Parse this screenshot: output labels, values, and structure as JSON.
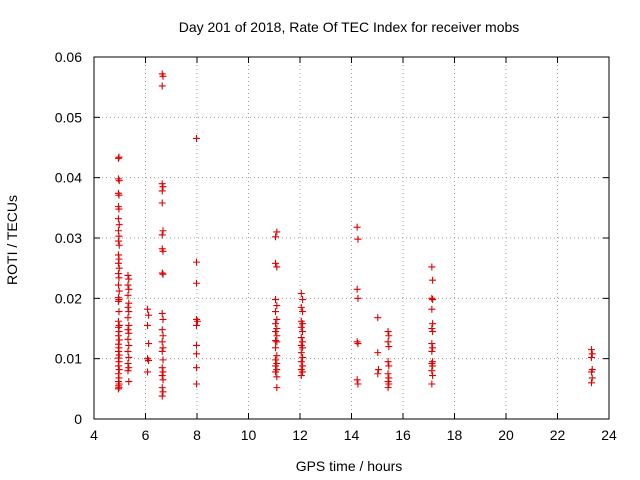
{
  "chart_data": {
    "type": "scatter",
    "title": "Day 201 of 2018, Rate Of TEC Index for receiver mobs",
    "xlabel": "GPS time / hours",
    "ylabel": "ROTI / TECUs",
    "xlim": [
      4,
      24
    ],
    "ylim": [
      0,
      0.06
    ],
    "x_ticks": [
      4,
      6,
      8,
      10,
      12,
      14,
      16,
      18,
      20,
      22,
      24
    ],
    "x_tick_labels": [
      "4",
      "6",
      "8",
      "10",
      "12",
      "14",
      "16",
      "18",
      "20",
      "22",
      "24"
    ],
    "y_ticks": [
      0,
      0.01,
      0.02,
      0.03,
      0.04,
      0.05,
      0.06
    ],
    "y_tick_labels": [
      "0",
      "0.01",
      "0.02",
      "0.03",
      "0.04",
      "0.05",
      "0.06"
    ],
    "grid": true,
    "marker": "plus",
    "series": [
      {
        "name": "ROTI",
        "color": "#e00000",
        "points": [
          [
            4.95,
            0.0432
          ],
          [
            4.97,
            0.0434
          ],
          [
            4.95,
            0.0398
          ],
          [
            4.98,
            0.0395
          ],
          [
            4.95,
            0.0374
          ],
          [
            4.97,
            0.0371
          ],
          [
            4.95,
            0.0352
          ],
          [
            4.97,
            0.0348
          ],
          [
            4.95,
            0.0332
          ],
          [
            4.98,
            0.0322
          ],
          [
            4.95,
            0.0312
          ],
          [
            4.97,
            0.0303
          ],
          [
            4.95,
            0.0295
          ],
          [
            4.98,
            0.0288
          ],
          [
            4.95,
            0.0272
          ],
          [
            4.97,
            0.0265
          ],
          [
            4.95,
            0.0258
          ],
          [
            4.98,
            0.025
          ],
          [
            4.95,
            0.0241
          ],
          [
            4.97,
            0.0234
          ],
          [
            4.95,
            0.0222
          ],
          [
            4.98,
            0.0212
          ],
          [
            4.95,
            0.0201
          ],
          [
            4.97,
            0.0198
          ],
          [
            4.95,
            0.0195
          ],
          [
            4.97,
            0.0178
          ],
          [
            4.95,
            0.0162
          ],
          [
            4.98,
            0.0155
          ],
          [
            4.95,
            0.0152
          ],
          [
            4.97,
            0.0145
          ],
          [
            4.95,
            0.0138
          ],
          [
            4.98,
            0.0131
          ],
          [
            4.95,
            0.0124
          ],
          [
            4.97,
            0.0118
          ],
          [
            4.95,
            0.0112
          ],
          [
            4.98,
            0.0106
          ],
          [
            4.95,
            0.0101
          ],
          [
            4.97,
            0.0095
          ],
          [
            4.95,
            0.0088
          ],
          [
            4.98,
            0.0082
          ],
          [
            4.95,
            0.0075
          ],
          [
            4.97,
            0.0068
          ],
          [
            4.95,
            0.0062
          ],
          [
            4.98,
            0.0058
          ],
          [
            4.95,
            0.0055
          ],
          [
            4.97,
            0.0052
          ],
          [
            4.95,
            0.005
          ],
          [
            5.32,
            0.0238
          ],
          [
            5.35,
            0.0232
          ],
          [
            5.32,
            0.0222
          ],
          [
            5.35,
            0.0215
          ],
          [
            5.32,
            0.0205
          ],
          [
            5.35,
            0.0192
          ],
          [
            5.32,
            0.0185
          ],
          [
            5.35,
            0.0178
          ],
          [
            5.32,
            0.0168
          ],
          [
            5.35,
            0.0155
          ],
          [
            5.32,
            0.0148
          ],
          [
            5.35,
            0.0142
          ],
          [
            5.32,
            0.0132
          ],
          [
            5.35,
            0.0122
          ],
          [
            5.32,
            0.0112
          ],
          [
            5.35,
            0.0102
          ],
          [
            5.32,
            0.0092
          ],
          [
            5.35,
            0.0085
          ],
          [
            5.32,
            0.008
          ],
          [
            5.35,
            0.0062
          ],
          [
            6.08,
            0.0182
          ],
          [
            6.12,
            0.0172
          ],
          [
            6.08,
            0.0155
          ],
          [
            6.12,
            0.0125
          ],
          [
            6.08,
            0.01
          ],
          [
            6.12,
            0.0097
          ],
          [
            6.08,
            0.0078
          ],
          [
            6.65,
            0.0572
          ],
          [
            6.68,
            0.0568
          ],
          [
            6.65,
            0.0552
          ],
          [
            6.65,
            0.039
          ],
          [
            6.68,
            0.0385
          ],
          [
            6.65,
            0.0378
          ],
          [
            6.65,
            0.0358
          ],
          [
            6.68,
            0.0312
          ],
          [
            6.65,
            0.0305
          ],
          [
            6.65,
            0.0282
          ],
          [
            6.68,
            0.0278
          ],
          [
            6.65,
            0.0242
          ],
          [
            6.68,
            0.024
          ],
          [
            6.65,
            0.0175
          ],
          [
            6.68,
            0.0165
          ],
          [
            6.65,
            0.0148
          ],
          [
            6.68,
            0.0138
          ],
          [
            6.65,
            0.0128
          ],
          [
            6.68,
            0.0118
          ],
          [
            6.65,
            0.0112
          ],
          [
            6.68,
            0.0098
          ],
          [
            6.65,
            0.0085
          ],
          [
            6.68,
            0.0078
          ],
          [
            6.65,
            0.0072
          ],
          [
            6.68,
            0.0065
          ],
          [
            6.65,
            0.0052
          ],
          [
            6.68,
            0.0045
          ],
          [
            6.65,
            0.0038
          ],
          [
            7.98,
            0.0465
          ],
          [
            7.98,
            0.026
          ],
          [
            7.98,
            0.0225
          ],
          [
            7.98,
            0.0165
          ],
          [
            8.02,
            0.0162
          ],
          [
            7.98,
            0.0155
          ],
          [
            7.98,
            0.0122
          ],
          [
            7.98,
            0.0108
          ],
          [
            7.98,
            0.0085
          ],
          [
            7.98,
            0.0058
          ],
          [
            11.05,
            0.0302
          ],
          [
            11.1,
            0.031
          ],
          [
            11.05,
            0.0258
          ],
          [
            11.1,
            0.0252
          ],
          [
            11.05,
            0.0198
          ],
          [
            11.1,
            0.0188
          ],
          [
            11.05,
            0.0178
          ],
          [
            11.1,
            0.0165
          ],
          [
            11.05,
            0.0158
          ],
          [
            11.1,
            0.015
          ],
          [
            11.05,
            0.0145
          ],
          [
            11.1,
            0.0138
          ],
          [
            11.05,
            0.013
          ],
          [
            11.1,
            0.0128
          ],
          [
            11.05,
            0.0118
          ],
          [
            11.1,
            0.0105
          ],
          [
            11.05,
            0.0098
          ],
          [
            11.1,
            0.0092
          ],
          [
            11.05,
            0.0088
          ],
          [
            11.1,
            0.0082
          ],
          [
            11.05,
            0.0078
          ],
          [
            11.1,
            0.007
          ],
          [
            11.1,
            0.0052
          ],
          [
            12.05,
            0.0208
          ],
          [
            12.1,
            0.0198
          ],
          [
            12.05,
            0.0185
          ],
          [
            12.1,
            0.0178
          ],
          [
            12.05,
            0.0162
          ],
          [
            12.1,
            0.0158
          ],
          [
            12.05,
            0.0152
          ],
          [
            12.1,
            0.0145
          ],
          [
            12.05,
            0.0135
          ],
          [
            12.1,
            0.0128
          ],
          [
            12.05,
            0.0122
          ],
          [
            12.1,
            0.0118
          ],
          [
            12.05,
            0.011
          ],
          [
            12.1,
            0.0102
          ],
          [
            12.05,
            0.0095
          ],
          [
            12.1,
            0.0088
          ],
          [
            12.05,
            0.0082
          ],
          [
            12.1,
            0.0078
          ],
          [
            12.05,
            0.0072
          ],
          [
            14.22,
            0.0318
          ],
          [
            14.25,
            0.0298
          ],
          [
            14.22,
            0.0215
          ],
          [
            14.25,
            0.02
          ],
          [
            14.22,
            0.0128
          ],
          [
            14.25,
            0.0125
          ],
          [
            14.22,
            0.0065
          ],
          [
            14.25,
            0.0058
          ],
          [
            15.02,
            0.0168
          ],
          [
            15.02,
            0.011
          ],
          [
            15.05,
            0.0082
          ],
          [
            15.02,
            0.0075
          ],
          [
            15.42,
            0.0145
          ],
          [
            15.45,
            0.0138
          ],
          [
            15.42,
            0.0128
          ],
          [
            15.45,
            0.012
          ],
          [
            15.42,
            0.0095
          ],
          [
            15.45,
            0.0088
          ],
          [
            15.42,
            0.0075
          ],
          [
            15.45,
            0.0068
          ],
          [
            15.42,
            0.0062
          ],
          [
            15.45,
            0.0058
          ],
          [
            15.42,
            0.0052
          ],
          [
            17.12,
            0.0252
          ],
          [
            17.15,
            0.023
          ],
          [
            17.12,
            0.02
          ],
          [
            17.15,
            0.0198
          ],
          [
            17.12,
            0.0182
          ],
          [
            17.15,
            0.0158
          ],
          [
            17.12,
            0.015
          ],
          [
            17.15,
            0.0145
          ],
          [
            17.12,
            0.0125
          ],
          [
            17.15,
            0.0118
          ],
          [
            17.12,
            0.0112
          ],
          [
            17.15,
            0.0095
          ],
          [
            17.12,
            0.0092
          ],
          [
            17.15,
            0.0088
          ],
          [
            17.12,
            0.008
          ],
          [
            17.15,
            0.0072
          ],
          [
            17.12,
            0.0058
          ],
          [
            23.32,
            0.0115
          ],
          [
            23.35,
            0.0108
          ],
          [
            23.32,
            0.0102
          ],
          [
            23.35,
            0.0082
          ],
          [
            23.32,
            0.0078
          ],
          [
            23.35,
            0.0068
          ],
          [
            23.32,
            0.006
          ]
        ]
      }
    ]
  }
}
